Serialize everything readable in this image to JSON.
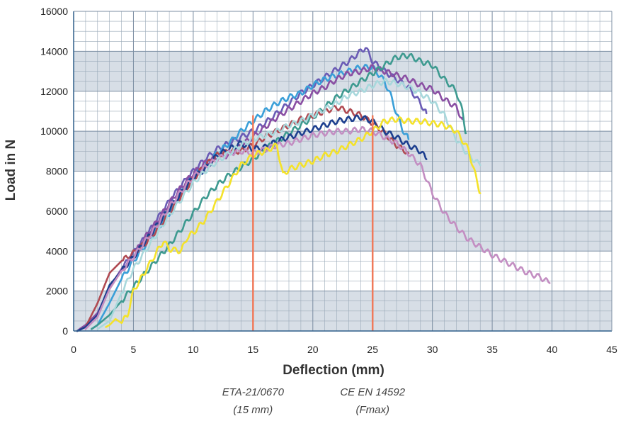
{
  "chart_data": {
    "type": "line",
    "title": "",
    "xlabel": "Deflection (mm)",
    "ylabel": "Load in N",
    "xlim": [
      0,
      45
    ],
    "ylim": [
      0,
      16000
    ],
    "xticks": [
      0,
      5,
      10,
      15,
      20,
      25,
      30,
      35,
      40,
      45
    ],
    "yticks": [
      0,
      2000,
      4000,
      6000,
      8000,
      10000,
      12000,
      14000,
      16000
    ],
    "grid": true,
    "legend": "none",
    "band_colors": [
      "#ffffff",
      "#d7dee6"
    ],
    "grid_color": "#9aa9b8",
    "reference_line_color": "#f07a5a",
    "reference_lines": [
      {
        "x": 15,
        "label_line1": "ETA-21/0670",
        "label_line2": "(15 mm)"
      },
      {
        "x": 25,
        "label_line1": "CE EN 14592",
        "label_line2": "(Fmax)"
      }
    ],
    "series": [
      {
        "color": "#6a5bb5",
        "x": [
          0.3,
          1,
          2,
          3,
          4,
          5,
          6,
          7,
          8,
          9,
          10,
          11,
          12,
          13,
          14,
          15,
          16,
          17,
          18,
          19,
          20,
          21,
          22,
          23,
          24,
          24.4,
          25,
          26,
          27,
          28,
          29,
          29.5
        ],
        "y": [
          0,
          300,
          900,
          2200,
          3100,
          3900,
          4700,
          5600,
          6500,
          7300,
          8000,
          8600,
          9100,
          9400,
          9700,
          10000,
          10400,
          10900,
          11400,
          11900,
          12300,
          12700,
          13100,
          13500,
          14000,
          14200,
          13500,
          13000,
          12600,
          12200,
          11400,
          10900
        ]
      },
      {
        "color": "#3a9fd8",
        "x": [
          1.5,
          2,
          3,
          4,
          5,
          6,
          7,
          8,
          9,
          10,
          11,
          12,
          13,
          14,
          15,
          16,
          17,
          18,
          19,
          20,
          21,
          22,
          23,
          24,
          25,
          26,
          26.5,
          27,
          27.5,
          28
        ],
        "y": [
          100,
          300,
          1400,
          2600,
          3500,
          4300,
          5100,
          5900,
          6900,
          7700,
          8300,
          8900,
          9400,
          10000,
          10500,
          11000,
          11400,
          11700,
          11900,
          12300,
          12600,
          12800,
          13000,
          13200,
          13200,
          12500,
          11800,
          10900,
          10100,
          9600
        ]
      },
      {
        "color": "#8a4fa3",
        "x": [
          0.5,
          1,
          2,
          3,
          4,
          5,
          6,
          7,
          8,
          9,
          10,
          11,
          12,
          13,
          14,
          15,
          16,
          17,
          18,
          19,
          20,
          21,
          22,
          23,
          24,
          25,
          26,
          27,
          28,
          29,
          30,
          31,
          32,
          32.5
        ],
        "y": [
          100,
          300,
          900,
          2100,
          3100,
          3800,
          4700,
          5500,
          6400,
          7200,
          7900,
          8400,
          8700,
          8800,
          9300,
          9700,
          10200,
          10700,
          11100,
          11500,
          11900,
          12200,
          12600,
          12900,
          13000,
          13200,
          13000,
          12800,
          12600,
          12300,
          12100,
          11600,
          11200,
          10600
        ]
      },
      {
        "color": "#3d9a90",
        "x": [
          1.5,
          2,
          3,
          4,
          5,
          6,
          7,
          8,
          9,
          10,
          11,
          12,
          13,
          14,
          15,
          16,
          17,
          18,
          19,
          20,
          21,
          22,
          23,
          24,
          25,
          26,
          27,
          28,
          29,
          30,
          31,
          32,
          32.5,
          32.8
        ],
        "y": [
          100,
          300,
          800,
          1500,
          2200,
          2900,
          3600,
          4300,
          5100,
          5900,
          6700,
          7300,
          7800,
          8200,
          8600,
          9100,
          9500,
          9900,
          10300,
          10700,
          11200,
          11700,
          12100,
          12500,
          12900,
          13300,
          13700,
          13800,
          13500,
          13300,
          12600,
          12000,
          11000,
          9900
        ]
      },
      {
        "color": "#b04a52",
        "x": [
          0.3,
          1,
          2,
          3,
          4,
          5,
          6,
          7,
          8,
          9,
          10,
          11,
          12,
          13,
          14,
          15,
          16,
          17,
          18,
          19,
          20,
          21,
          22,
          23,
          24,
          25,
          26,
          27,
          28
        ],
        "y": [
          0,
          200,
          1400,
          2900,
          3500,
          3900,
          4400,
          5100,
          5900,
          6800,
          7600,
          8300,
          8800,
          9000,
          9000,
          9300,
          9700,
          10000,
          10300,
          10600,
          10800,
          11000,
          11200,
          11000,
          10800,
          10400,
          9900,
          9300,
          8900
        ]
      },
      {
        "color": "#1d3f8f",
        "x": [
          0.3,
          1,
          2,
          3,
          4,
          5,
          6,
          7,
          8,
          9,
          10,
          11,
          12,
          13,
          14,
          15,
          16,
          17,
          18,
          19,
          20,
          21,
          22,
          23,
          24,
          25,
          26,
          27,
          28,
          29,
          29.5
        ],
        "y": [
          0,
          200,
          800,
          2300,
          3000,
          3700,
          4500,
          5300,
          6100,
          6900,
          7700,
          8100,
          8800,
          9100,
          9400,
          9100,
          9200,
          9500,
          9700,
          9900,
          10100,
          10300,
          10500,
          10600,
          10700,
          10500,
          10000,
          9700,
          9300,
          9000,
          8600
        ]
      },
      {
        "color": "#c38ec2",
        "x": [
          1,
          2,
          3,
          4,
          5,
          6,
          7,
          8,
          9,
          10,
          11,
          12,
          13,
          14,
          15,
          16,
          17,
          18,
          19,
          20,
          21,
          22,
          23,
          24,
          25,
          26,
          27,
          28,
          29,
          30,
          31,
          32,
          33,
          34,
          35,
          36,
          37,
          38,
          39,
          39.8
        ],
        "y": [
          100,
          700,
          2100,
          3000,
          3700,
          4500,
          5300,
          6200,
          7000,
          7700,
          8200,
          8600,
          8900,
          9000,
          8900,
          9100,
          9300,
          9400,
          9600,
          9800,
          9900,
          10000,
          10000,
          10100,
          10000,
          9700,
          9400,
          8900,
          8300,
          6900,
          5900,
          5200,
          4600,
          4200,
          3800,
          3500,
          3200,
          2900,
          2700,
          2400
        ]
      },
      {
        "color": "#a8d8dc",
        "x": [
          2,
          3,
          4,
          5,
          6,
          7,
          8,
          9,
          10,
          11,
          12,
          13,
          14,
          15,
          16,
          17,
          18,
          19,
          20,
          21,
          22,
          23,
          24,
          25,
          26,
          27,
          28,
          29,
          30,
          31,
          32,
          33,
          34
        ],
        "y": [
          100,
          500,
          1900,
          3100,
          4000,
          4900,
          5800,
          6600,
          7400,
          8000,
          8500,
          8900,
          9300,
          9600,
          9800,
          10000,
          10300,
          10500,
          10800,
          11100,
          11400,
          11800,
          12000,
          12300,
          12500,
          12400,
          12200,
          11900,
          11500,
          10800,
          9600,
          8800,
          8300
        ]
      },
      {
        "color": "#f4e22a",
        "x": [
          2.7,
          3,
          3.5,
          4,
          4.5,
          5,
          6,
          7,
          7.5,
          8,
          9,
          9.5,
          10,
          11,
          12,
          13,
          14,
          15,
          16,
          17,
          17.5,
          18,
          19,
          20,
          21,
          22,
          23,
          24,
          25,
          26,
          27,
          28,
          29,
          30,
          31,
          32,
          33,
          33.5,
          34
        ],
        "y": [
          200,
          300,
          600,
          400,
          800,
          2000,
          3000,
          4000,
          4500,
          4100,
          4000,
          4700,
          4900,
          5600,
          6500,
          7400,
          8300,
          8800,
          9000,
          9300,
          7800,
          8100,
          8300,
          8500,
          8800,
          9000,
          9300,
          9600,
          10000,
          10500,
          10600,
          10500,
          10500,
          10400,
          10300,
          10000,
          9100,
          8000,
          6900
        ]
      }
    ]
  }
}
